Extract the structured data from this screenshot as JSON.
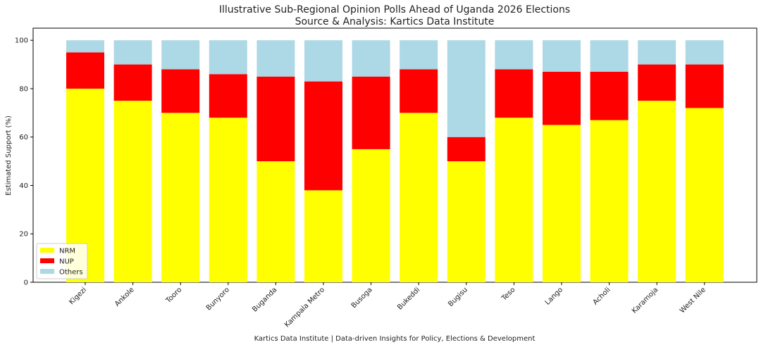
{
  "chart_data": {
    "type": "bar",
    "stacked": true,
    "title": "Illustrative Sub-Regional Opinion Polls Ahead of Uganda 2026 Elections",
    "subtitle": "Source & Analysis: Kartics Data Institute",
    "xlabel": "",
    "ylabel": "Estimated Support (%)",
    "ylim": [
      0,
      105
    ],
    "yticks": [
      0,
      20,
      40,
      60,
      80,
      100
    ],
    "grid": false,
    "legend_position": "lower-left",
    "footer": "Kartics Data Institute | Data-driven Insights for Policy, Elections & Development",
    "categories": [
      "Kigezi",
      "Ankole",
      "Tooro",
      "Bunyoro",
      "Buganda",
      "Kampala Metro",
      "Busoga",
      "Bukeddi",
      "Bugisu",
      "Teso",
      "Lango",
      "Acholi",
      "Karamoja",
      "West Nile"
    ],
    "series": [
      {
        "name": "NRM",
        "color": "#ffff00",
        "values": [
          80,
          75,
          70,
          68,
          50,
          38,
          55,
          70,
          50,
          68,
          65,
          67,
          75,
          72
        ]
      },
      {
        "name": "NUP",
        "color": "#ff0000",
        "values": [
          15,
          15,
          18,
          18,
          35,
          45,
          30,
          18,
          10,
          20,
          22,
          20,
          15,
          18
        ]
      },
      {
        "name": "Others",
        "color": "#add8e6",
        "values": [
          5,
          10,
          12,
          14,
          15,
          17,
          15,
          12,
          40,
          12,
          13,
          13,
          10,
          10
        ]
      }
    ]
  }
}
